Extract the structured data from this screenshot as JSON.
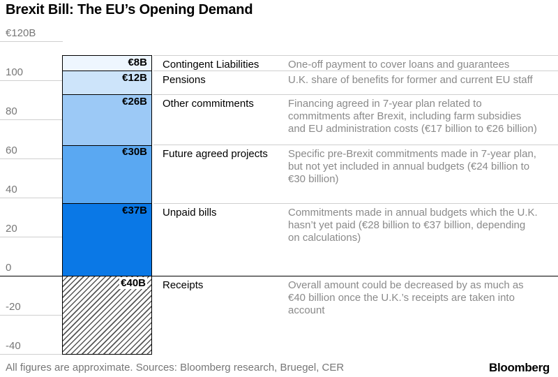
{
  "title": "Brexit Bill: The EU’s Opening Demand",
  "footer": "All figures are approximate. Sources: Bloomberg research, Bruegel, CER",
  "brand": "Bloomberg",
  "chart_data": {
    "type": "bar",
    "layout": "stacked-single-column",
    "ylim": [
      -40,
      120
    ],
    "grid": true,
    "y_ticks": [
      {
        "value": 120,
        "label": "€120B"
      },
      {
        "value": 100,
        "label": "100"
      },
      {
        "value": 80,
        "label": "80"
      },
      {
        "value": 60,
        "label": "60"
      },
      {
        "value": 40,
        "label": "40"
      },
      {
        "value": 20,
        "label": "20"
      },
      {
        "value": 0,
        "label": "0"
      },
      {
        "value": -20,
        "label": "-20"
      },
      {
        "value": -40,
        "label": "-40"
      }
    ],
    "segments": [
      {
        "name": "Unpaid bills",
        "value": 37,
        "label": "€37B",
        "color": "#0a78e6",
        "pattern": "solid",
        "description": [
          "Commitments made in annual budgets which the U.K.",
          "hasn’t yet paid (€28 billion to €37 billion, depending",
          "on calculations)"
        ]
      },
      {
        "name": "Future agreed projects",
        "value": 30,
        "label": "€30B",
        "color": "#5aa8f2",
        "pattern": "solid",
        "description": [
          "Specific pre-Brexit commitments made in 7-year plan,",
          "but not yet included in annual budgets (€24 billion to",
          "€30 billion)"
        ]
      },
      {
        "name": "Other commitments",
        "value": 26,
        "label": "€26B",
        "color": "#9cc9f6",
        "pattern": "solid",
        "description": [
          "Financing agreed in 7-year plan related to",
          "commitments after Brexit, including farm subsidies",
          "and EU administration costs (€17 billion to €26 billion)"
        ]
      },
      {
        "name": "Pensions",
        "value": 12,
        "label": "€12B",
        "color": "#cde4fa",
        "pattern": "solid",
        "description": [
          "U.K. share of benefits for former and current EU staff"
        ]
      },
      {
        "name": "Contingent Liabilities",
        "value": 8,
        "label": "€8B",
        "color": "#eef6fe",
        "pattern": "solid",
        "description": [
          "One-off payment to cover loans and guarantees"
        ]
      },
      {
        "name": "Receipts",
        "value": -40,
        "label": "€40B",
        "color": "#555555",
        "pattern": "hatched",
        "description": [
          "Overall amount could be decreased by as much as",
          "€40 billion once the U.K.’s receipts are taken into",
          "account"
        ]
      }
    ]
  }
}
